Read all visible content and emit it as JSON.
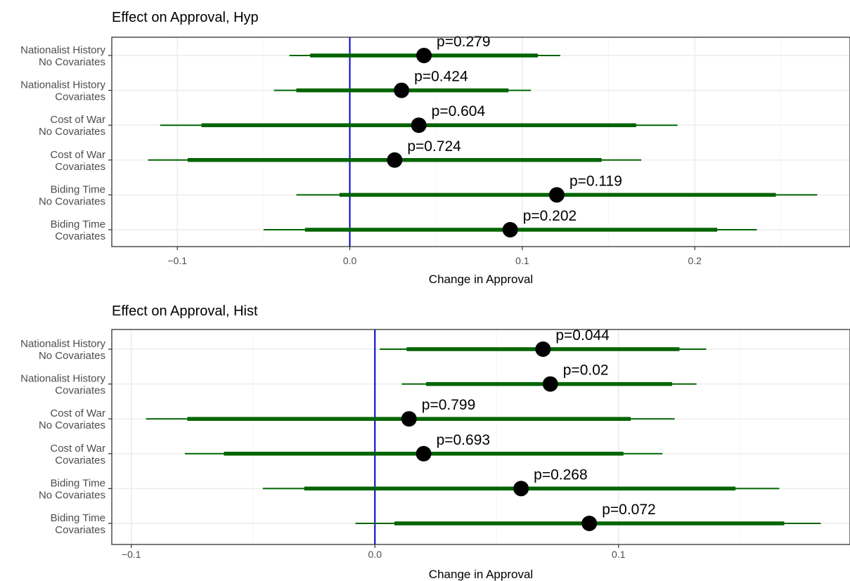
{
  "chart_data": [
    {
      "type": "forest",
      "title": "Effect on Approval, Hyp",
      "xlabel": "Change in Approval",
      "xlim": [
        -0.138,
        0.29
      ],
      "xticks": [
        -0.1,
        0.0,
        0.1,
        0.2
      ],
      "xtick_labels": [
        "−0.1",
        "0.0",
        "0.1",
        "0.2"
      ],
      "reference_line": 0,
      "grid": true,
      "rows": [
        {
          "line1": "Nationalist History",
          "line2": "No Covariates",
          "estimate": 0.043,
          "ci_inner": [
            -0.023,
            0.109
          ],
          "ci_outer": [
            -0.035,
            0.122
          ],
          "p_label": "p=0.279"
        },
        {
          "line1": "Nationalist History",
          "line2": "Covariates",
          "estimate": 0.03,
          "ci_inner": [
            -0.031,
            0.092
          ],
          "ci_outer": [
            -0.044,
            0.105
          ],
          "p_label": "p=0.424"
        },
        {
          "line1": "Cost of War",
          "line2": "No Covariates",
          "estimate": 0.04,
          "ci_inner": [
            -0.086,
            0.166
          ],
          "ci_outer": [
            -0.11,
            0.19
          ],
          "p_label": "p=0.604"
        },
        {
          "line1": "Cost of War",
          "line2": "Covariates",
          "estimate": 0.026,
          "ci_inner": [
            -0.094,
            0.146
          ],
          "ci_outer": [
            -0.117,
            0.169
          ],
          "p_label": "p=0.724"
        },
        {
          "line1": "Biding Time",
          "line2": "No Covariates",
          "estimate": 0.12,
          "ci_inner": [
            -0.006,
            0.247
          ],
          "ci_outer": [
            -0.031,
            0.271
          ],
          "p_label": "p=0.119"
        },
        {
          "line1": "Biding Time",
          "line2": "Covariates",
          "estimate": 0.093,
          "ci_inner": [
            -0.026,
            0.213
          ],
          "ci_outer": [
            -0.05,
            0.236
          ],
          "p_label": "p=0.202"
        }
      ]
    },
    {
      "type": "forest",
      "title": "Effect on Approval, Hist",
      "xlabel": "Change in Approval",
      "xlim": [
        -0.108,
        0.195
      ],
      "xticks": [
        -0.1,
        0.0,
        0.1
      ],
      "xtick_labels": [
        "−0.1",
        "0.0",
        "0.1"
      ],
      "reference_line": 0,
      "grid": true,
      "rows": [
        {
          "line1": "Nationalist History",
          "line2": "No Covariates",
          "estimate": 0.069,
          "ci_inner": [
            0.013,
            0.125
          ],
          "ci_outer": [
            0.002,
            0.136
          ],
          "p_label": "p=0.044"
        },
        {
          "line1": "Nationalist History",
          "line2": "Covariates",
          "estimate": 0.072,
          "ci_inner": [
            0.021,
            0.122
          ],
          "ci_outer": [
            0.011,
            0.132
          ],
          "p_label": "p=0.02"
        },
        {
          "line1": "Cost of War",
          "line2": "No Covariates",
          "estimate": 0.014,
          "ci_inner": [
            -0.077,
            0.105
          ],
          "ci_outer": [
            -0.094,
            0.123
          ],
          "p_label": "p=0.799"
        },
        {
          "line1": "Cost of War",
          "line2": "Covariates",
          "estimate": 0.02,
          "ci_inner": [
            -0.062,
            0.102
          ],
          "ci_outer": [
            -0.078,
            0.118
          ],
          "p_label": "p=0.693"
        },
        {
          "line1": "Biding Time",
          "line2": "No Covariates",
          "estimate": 0.06,
          "ci_inner": [
            -0.029,
            0.148
          ],
          "ci_outer": [
            -0.046,
            0.166
          ],
          "p_label": "p=0.268"
        },
        {
          "line1": "Biding Time",
          "line2": "Covariates",
          "estimate": 0.088,
          "ci_inner": [
            0.008,
            0.168
          ],
          "ci_outer": [
            -0.008,
            0.183
          ],
          "p_label": "p=0.072"
        }
      ]
    }
  ],
  "colors": {
    "interval": "#006400",
    "reference_line": "#0000cd",
    "point": "#000000",
    "grid": "#ebebeb",
    "panel_border": "#333333"
  }
}
